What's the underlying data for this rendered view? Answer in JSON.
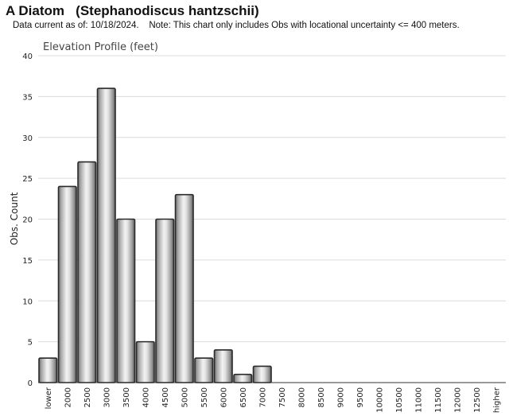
{
  "header": {
    "title": "A Diatom   (Stephanodiscus hantzschii)",
    "subtitle": "Data current as of: 10/18/2024.    Note: This chart only includes Obs with locational uncertainty <= 400 meters."
  },
  "chart_data": {
    "type": "bar",
    "title": "Elevation Profile (feet)",
    "xlabel": "",
    "ylabel": "Obs. Count",
    "ylim": [
      0,
      40
    ],
    "yticks": [
      0,
      5,
      10,
      15,
      20,
      25,
      30,
      35,
      40
    ],
    "grid": true,
    "categories": [
      "lower",
      "2000",
      "2500",
      "3000",
      "3500",
      "4000",
      "4500",
      "5000",
      "5500",
      "6000",
      "6500",
      "7000",
      "7500",
      "8000",
      "8500",
      "9000",
      "9500",
      "10000",
      "10500",
      "11000",
      "11500",
      "12000",
      "12500",
      "higher"
    ],
    "values": [
      3,
      24,
      27,
      36,
      20,
      5,
      20,
      23,
      3,
      4,
      1,
      2,
      0,
      0,
      0,
      0,
      0,
      0,
      0,
      0,
      0,
      0,
      0,
      0
    ]
  }
}
